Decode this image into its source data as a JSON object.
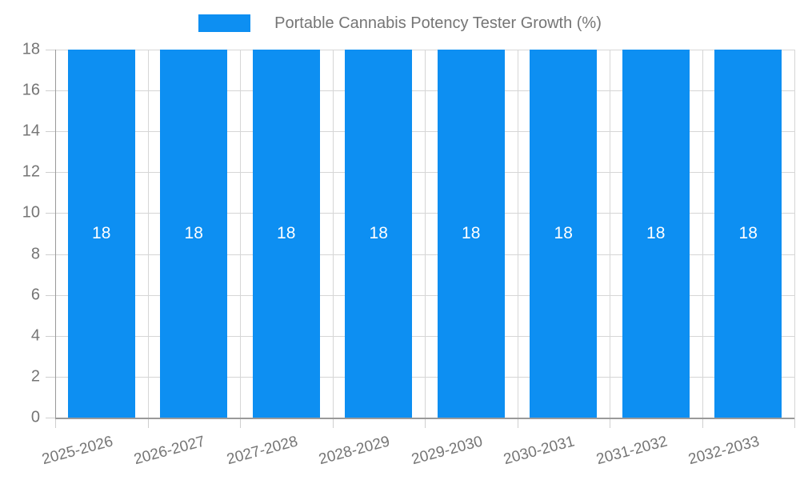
{
  "chart_data": {
    "type": "bar",
    "title": "Portable Cannabis Potency Tester Growth (%)",
    "xlabel": "",
    "ylabel": "",
    "categories": [
      "2025-2026",
      "2026-2027",
      "2027-2028",
      "2028-2029",
      "2029-2030",
      "2030-2031",
      "2031-2032",
      "2032-2033"
    ],
    "values": [
      18,
      18,
      18,
      18,
      18,
      18,
      18,
      18
    ],
    "bar_value_labels": [
      "18",
      "18",
      "18",
      "18",
      "18",
      "18",
      "18",
      "18"
    ],
    "ylim": [
      0,
      18
    ],
    "yticks": [
      0,
      2,
      4,
      6,
      8,
      10,
      12,
      14,
      16,
      18
    ],
    "grid": "on",
    "legend_position": "top",
    "colors": {
      "bar": "#0d8ff2",
      "bar_value_label": "#ffffff",
      "axis_text": "#757575",
      "gridline": "#d6d6d6",
      "axis_line": "#9a9a9a"
    }
  }
}
